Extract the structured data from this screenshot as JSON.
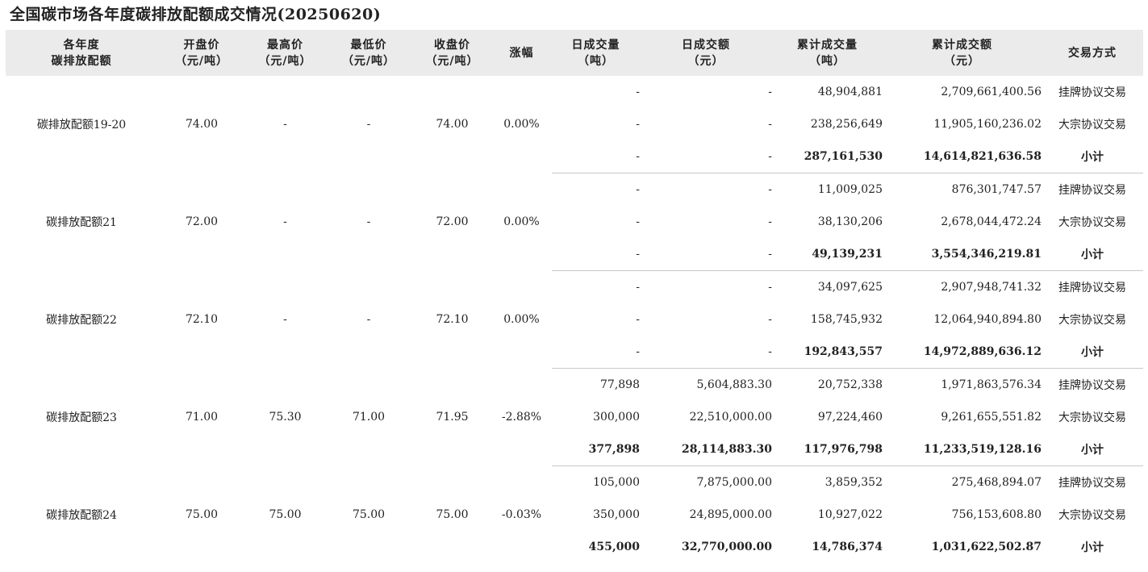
{
  "title": "全国碳市场各年度碳排放配额成交情况(20250620)",
  "headers": {
    "year_l1": "各年度",
    "year_l2": "碳排放配额",
    "open_l1": "开盘价",
    "open_l2": "（元/吨）",
    "high_l1": "最高价",
    "high_l2": "（元/吨）",
    "low_l1": "最低价",
    "low_l2": "（元/吨）",
    "close_l1": "收盘价",
    "close_l2": "（元/吨）",
    "change": "涨幅",
    "dvol_l1": "日成交量",
    "dvol_l2": "（吨）",
    "damt_l1": "日成交额",
    "damt_l2": "（元）",
    "cvol_l1": "累计成交量",
    "cvol_l2": "（吨）",
    "camt_l1": "累计成交额",
    "camt_l2": "（元）",
    "method": "交易方式"
  },
  "groups": [
    {
      "name": "碳排放配额19-20",
      "open": "74.00",
      "high": "-",
      "low": "-",
      "close": "74.00",
      "change": "0.00%",
      "rows": [
        {
          "dvol": "-",
          "damt": "-",
          "cvol": "48,904,881",
          "camt": "2,709,661,400.56",
          "method": "挂牌协议交易"
        },
        {
          "dvol": "-",
          "damt": "-",
          "cvol": "238,256,649",
          "camt": "11,905,160,236.02",
          "method": "大宗协议交易"
        },
        {
          "dvol": "-",
          "damt": "-",
          "cvol": "287,161,530",
          "camt": "14,614,821,636.58",
          "method": "小计"
        }
      ]
    },
    {
      "name": "碳排放配额21",
      "open": "72.00",
      "high": "-",
      "low": "-",
      "close": "72.00",
      "change": "0.00%",
      "rows": [
        {
          "dvol": "-",
          "damt": "-",
          "cvol": "11,009,025",
          "camt": "876,301,747.57",
          "method": "挂牌协议交易"
        },
        {
          "dvol": "-",
          "damt": "-",
          "cvol": "38,130,206",
          "camt": "2,678,044,472.24",
          "method": "大宗协议交易"
        },
        {
          "dvol": "-",
          "damt": "-",
          "cvol": "49,139,231",
          "camt": "3,554,346,219.81",
          "method": "小计"
        }
      ]
    },
    {
      "name": "碳排放配额22",
      "open": "72.10",
      "high": "-",
      "low": "-",
      "close": "72.10",
      "change": "0.00%",
      "rows": [
        {
          "dvol": "-",
          "damt": "-",
          "cvol": "34,097,625",
          "camt": "2,907,948,741.32",
          "method": "挂牌协议交易"
        },
        {
          "dvol": "-",
          "damt": "-",
          "cvol": "158,745,932",
          "camt": "12,064,940,894.80",
          "method": "大宗协议交易"
        },
        {
          "dvol": "-",
          "damt": "-",
          "cvol": "192,843,557",
          "camt": "14,972,889,636.12",
          "method": "小计"
        }
      ]
    },
    {
      "name": "碳排放配额23",
      "open": "71.00",
      "high": "75.30",
      "low": "71.00",
      "close": "71.95",
      "change": "-2.88%",
      "rows": [
        {
          "dvol": "77,898",
          "damt": "5,604,883.30",
          "cvol": "20,752,338",
          "camt": "1,971,863,576.34",
          "method": "挂牌协议交易"
        },
        {
          "dvol": "300,000",
          "damt": "22,510,000.00",
          "cvol": "97,224,460",
          "camt": "9,261,655,551.82",
          "method": "大宗协议交易"
        },
        {
          "dvol": "377,898",
          "damt": "28,114,883.30",
          "cvol": "117,976,798",
          "camt": "11,233,519,128.16",
          "method": "小计"
        }
      ]
    },
    {
      "name": "碳排放配额24",
      "open": "75.00",
      "high": "75.00",
      "low": "75.00",
      "close": "75.00",
      "change": "-0.03%",
      "rows": [
        {
          "dvol": "105,000",
          "damt": "7,875,000.00",
          "cvol": "3,859,352",
          "camt": "275,468,894.07",
          "method": "挂牌协议交易"
        },
        {
          "dvol": "350,000",
          "damt": "24,895,000.00",
          "cvol": "10,927,022",
          "camt": "756,153,608.80",
          "method": "大宗协议交易"
        },
        {
          "dvol": "455,000",
          "damt": "32,770,000.00",
          "cvol": "14,786,374",
          "camt": "1,031,622,502.87",
          "method": "小计"
        }
      ]
    }
  ]
}
